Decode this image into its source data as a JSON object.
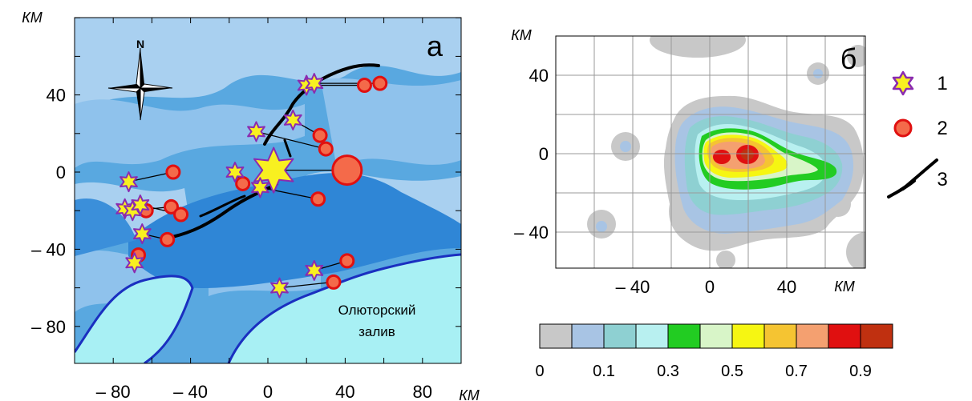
{
  "map_a": {
    "panel_label": "а",
    "km_label": "КМ",
    "compass_label": "N",
    "water_label_line1": "Олюторский",
    "water_label_line2": "залив",
    "x_ticks": [
      "– 80",
      "– 40",
      "0",
      "40",
      "80"
    ],
    "y_ticks": [
      "40",
      "0",
      "– 40",
      "– 80"
    ],
    "epicenters": [
      {
        "x": 3,
        "y": 1,
        "size": "large"
      },
      {
        "x": -72,
        "y": -5
      },
      {
        "x": -74,
        "y": -19
      },
      {
        "x": -70,
        "y": -20
      },
      {
        "x": -66,
        "y": -17
      },
      {
        "x": -65,
        "y": -32
      },
      {
        "x": -69,
        "y": -47
      },
      {
        "x": -17,
        "y": 0
      },
      {
        "x": -4,
        "y": -8
      },
      {
        "x": -6,
        "y": 21
      },
      {
        "x": 13,
        "y": 27
      },
      {
        "x": 20,
        "y": 45
      },
      {
        "x": 24,
        "y": 46
      },
      {
        "x": 24,
        "y": -51
      },
      {
        "x": 6,
        "y": -60
      }
    ],
    "hypocenters": [
      {
        "x": 41,
        "y": 1,
        "size": "large"
      },
      {
        "x": -49,
        "y": 0
      },
      {
        "x": -63,
        "y": -20
      },
      {
        "x": -50,
        "y": -18
      },
      {
        "x": -45,
        "y": -22
      },
      {
        "x": -52,
        "y": -35
      },
      {
        "x": -67,
        "y": -43
      },
      {
        "x": -13,
        "y": -6
      },
      {
        "x": 26,
        "y": -14
      },
      {
        "x": 30,
        "y": 12
      },
      {
        "x": 27,
        "y": 19
      },
      {
        "x": 50,
        "y": 45
      },
      {
        "x": 58,
        "y": 46
      },
      {
        "x": 41,
        "y": -46
      },
      {
        "x": 34,
        "y": -57
      }
    ]
  },
  "map_b": {
    "panel_label": "б",
    "km_label_top": "КМ",
    "km_label_bottom": "КМ",
    "x_ticks": [
      "– 40",
      "0",
      "40"
    ],
    "y_ticks": [
      "40",
      "0",
      "– 40"
    ]
  },
  "colorbar": {
    "labels": [
      "0",
      "0.1",
      "0.3",
      "0.5",
      "0.7",
      "0.9"
    ],
    "colors": [
      "#c8c8c8",
      "#a8c4e4",
      "#8ed0d2",
      "#b8f0f0",
      "#22cc22",
      "#d8f5c8",
      "#f6f612",
      "#f5c432",
      "#f4a070",
      "#e01010",
      "#c03010"
    ]
  },
  "legend": {
    "items": [
      {
        "label": "1",
        "icon": "star-icon"
      },
      {
        "label": "2",
        "icon": "circle-icon"
      },
      {
        "label": "3",
        "icon": "fault-line-icon"
      }
    ]
  }
}
